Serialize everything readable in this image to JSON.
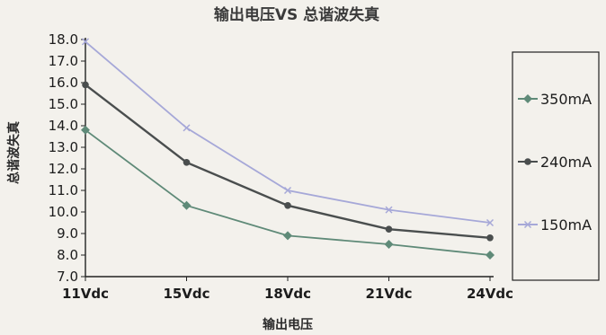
{
  "chart_data": {
    "type": "line",
    "title": "输出电压VS 总谐波失真",
    "xlabel": "输出电压",
    "ylabel": "总谐波失真",
    "categories": [
      "11Vdc",
      "15Vdc",
      "18Vdc",
      "21Vdc",
      "24Vdc"
    ],
    "ylim": [
      7.0,
      18.0
    ],
    "yticks": [
      "18.0",
      "17.0",
      "16.0",
      "15.0",
      "14.0",
      "13.0",
      "12.0",
      "11.0",
      "10.0",
      "9.0",
      "8.0",
      "7.0"
    ],
    "grid": false,
    "legend_position": "right",
    "series": [
      {
        "name": "350mA",
        "values": [
          13.8,
          10.3,
          8.9,
          8.5,
          8.0
        ],
        "color": "#5f8a78",
        "marker": "diamond"
      },
      {
        "name": "240mA",
        "values": [
          15.9,
          12.3,
          10.3,
          9.2,
          8.8
        ],
        "color": "#4a4e4e",
        "marker": "circle"
      },
      {
        "name": "150mA",
        "values": [
          17.9,
          13.9,
          11.0,
          10.1,
          9.5
        ],
        "color": "#a6a8d8",
        "marker": "x"
      }
    ]
  }
}
